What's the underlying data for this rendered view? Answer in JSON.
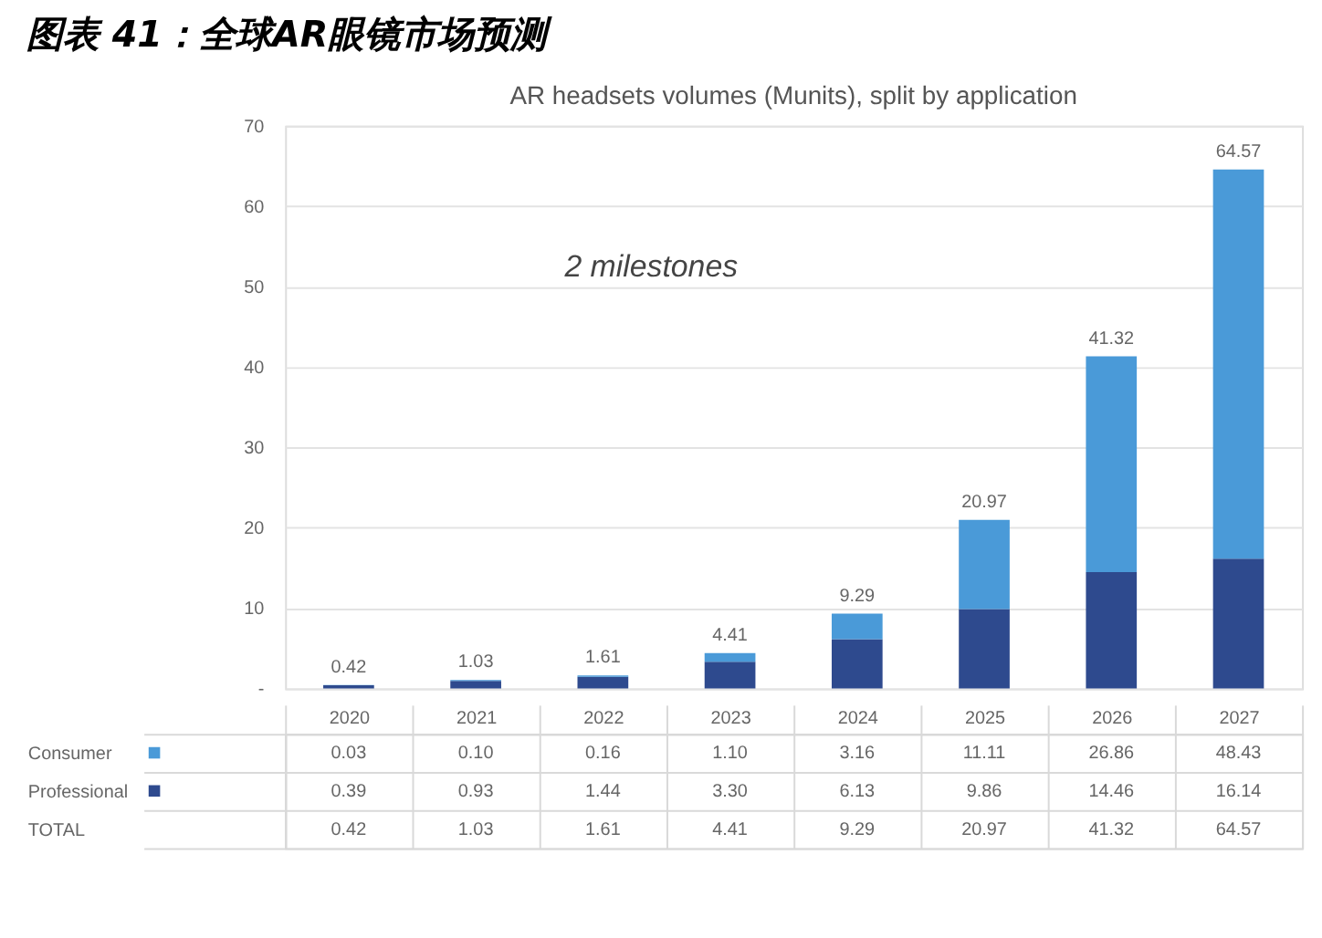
{
  "chart_data": {
    "type": "bar",
    "title": "图表 41：全球AR眼镜市场预测",
    "subtitle": "AR headsets volumes (Munits), split by application",
    "categories": [
      "2020",
      "2021",
      "2022",
      "2023",
      "2024",
      "2025",
      "2026",
      "2027"
    ],
    "series": [
      {
        "name": "Professional",
        "color": "#2e4a8e",
        "values": [
          0.39,
          0.93,
          1.44,
          3.3,
          6.13,
          9.86,
          14.46,
          16.14
        ],
        "value_labels": [
          "0.39",
          "0.93",
          "1.44",
          "3.30",
          "6.13",
          "9.86",
          "14.46",
          "16.14"
        ]
      },
      {
        "name": "Consumer",
        "color": "#4a9ad8",
        "values": [
          0.03,
          0.1,
          0.16,
          1.1,
          3.16,
          11.11,
          26.86,
          48.43
        ],
        "value_labels": [
          "0.03",
          "0.10",
          "0.16",
          "1.10",
          "3.16",
          "11.11",
          "26.86",
          "48.43"
        ]
      }
    ],
    "stacked": true,
    "totals": [
      "0.42",
      "1.03",
      "1.61",
      "4.41",
      "9.29",
      "20.97",
      "41.32",
      "64.57"
    ],
    "ylim": [
      0,
      70
    ],
    "yticks": [
      {
        "value": 0,
        "label": "-"
      },
      10,
      20,
      30,
      40,
      50,
      60,
      70
    ],
    "grid": "y",
    "legend": "bottom left",
    "tick_labels": "y",
    "annotations": [
      "2 milestones",
      "TOTAL"
    ]
  }
}
